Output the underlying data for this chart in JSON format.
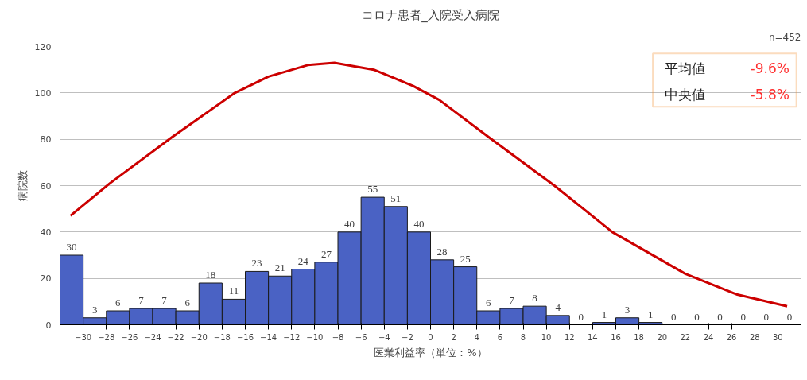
{
  "chart_data": {
    "type": "histogram",
    "title": "コロナ患者_入院受入病院",
    "xlabel": "医業利益率（単位：%）",
    "ylabel": "病院数",
    "bins": [
      -32,
      -30,
      -28,
      -26,
      -24,
      -22,
      -20,
      -18,
      -16,
      -14,
      -12,
      -10,
      -8,
      -6,
      -4,
      -2,
      0,
      2,
      4,
      6,
      8,
      10,
      12,
      14,
      16,
      18,
      20,
      22,
      24,
      26,
      28,
      30,
      32
    ],
    "series": [
      {
        "color": "#4a62c4",
        "data_labels": true,
        "values": [
          30,
          3,
          6,
          7,
          7,
          6,
          18,
          11,
          23,
          21,
          24,
          27,
          40,
          55,
          51,
          40,
          28,
          25,
          6,
          7,
          8,
          4,
          0,
          1,
          3,
          1,
          0,
          0,
          0,
          0,
          0,
          0
        ]
      },
      {
        "type": "line",
        "color": "#cc0000",
        "x": [
          -31.1,
          -27.7,
          -22.3,
          -16.9,
          -14,
          -10.6,
          -8.3,
          -4.9,
          -1.5,
          0.75,
          5.0,
          10.7,
          15.7,
          22,
          26.5,
          30.8
        ],
        "values": [
          47,
          61,
          81,
          100,
          107,
          112,
          113,
          110,
          103,
          97,
          81,
          60,
          40,
          22,
          13,
          8
        ]
      }
    ],
    "xlim": [
      -32,
      32
    ],
    "xticks": [
      -30,
      -28,
      -26,
      -24,
      -22,
      -20,
      -18,
      -16,
      -14,
      -12,
      -10,
      -8,
      -6,
      -4,
      -2,
      0,
      2,
      4,
      6,
      8,
      10,
      12,
      14,
      16,
      18,
      20,
      22,
      24,
      26,
      28,
      30
    ],
    "ylim": [
      0,
      120
    ],
    "yticks": [
      0,
      20,
      40,
      60,
      80,
      100,
      120
    ],
    "grid": "y",
    "annotations": [
      "n=452",
      "平均値",
      "-9.6%",
      "中央値",
      "-5.8%"
    ]
  }
}
